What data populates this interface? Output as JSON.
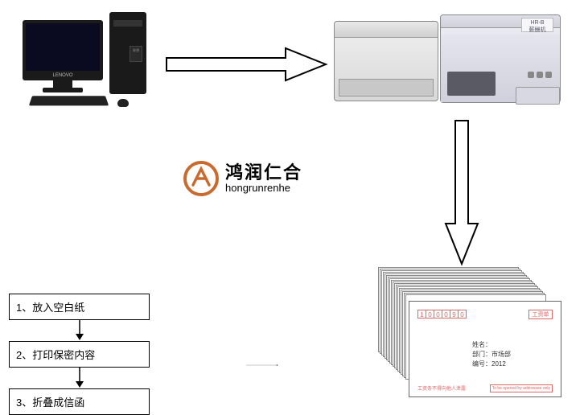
{
  "computer": {
    "monitor_brand": "LENOVO",
    "tower_label": "联想"
  },
  "machine": {
    "folder_model": "HR-B",
    "folder_name": "薪酬机"
  },
  "logo": {
    "cn": "鸿润仁合",
    "en": "hongrunrenhe"
  },
  "steps": [
    {
      "label": "1、放入空白纸"
    },
    {
      "label": "2、打印保密内容"
    },
    {
      "label": "3、折叠成信函"
    }
  ],
  "envelope": {
    "postcode": [
      "1",
      "0",
      "0",
      "0",
      "9",
      "0"
    ],
    "badge": "工资单",
    "line1_label": "姓名：",
    "line2_label": "部门：",
    "line2_value": "市场部",
    "line3_label": "编号：",
    "line3_value": "2012",
    "footer_left": "工资条不得向他人泄露",
    "footer_right": "To be opened by addressee only"
  },
  "colors": {
    "logo": "#c96a2e",
    "envelope_accent": "#d66",
    "arrow_stroke": "#000000"
  }
}
